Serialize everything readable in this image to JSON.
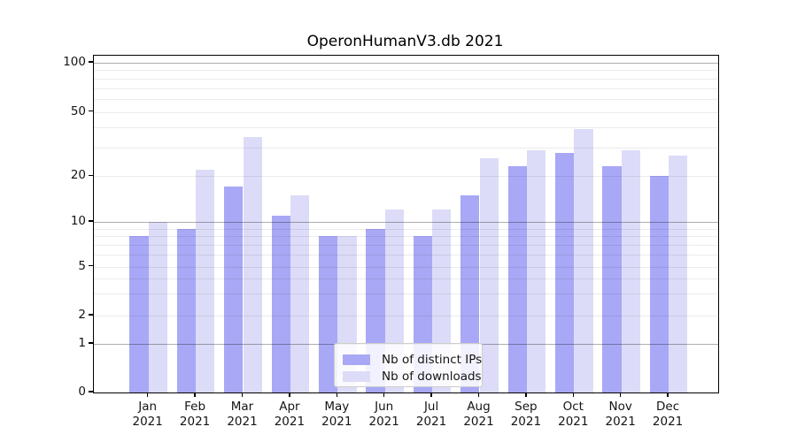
{
  "chart_data": {
    "type": "bar",
    "title": "OperonHumanV3.db 2021",
    "categories": [
      "Jan",
      "Feb",
      "Mar",
      "Apr",
      "May",
      "Jun",
      "Jul",
      "Aug",
      "Sep",
      "Oct",
      "Nov",
      "Dec"
    ],
    "year_label": "2021",
    "series": [
      {
        "name": "Nb of distinct IPs",
        "color": "#a8a8f6",
        "values": [
          8,
          9,
          17,
          11,
          8,
          9,
          8,
          15,
          23,
          28,
          23,
          20
        ]
      },
      {
        "name": "Nb of downloads",
        "color": "#dcdcf8",
        "values": [
          10,
          22,
          35,
          15,
          8,
          12,
          12,
          26,
          29,
          39,
          29,
          27
        ]
      }
    ],
    "xlabel": "",
    "ylabel": "",
    "yscale": "symlog",
    "y_ticks": [
      0,
      1,
      2,
      5,
      10,
      20,
      50,
      100
    ],
    "y_tick_labels": [
      "0",
      "1",
      "2",
      "5",
      "10",
      "20",
      "50",
      "100"
    ],
    "ylim": [
      0,
      115
    ],
    "grid": "on",
    "legend_position": "lower center"
  }
}
